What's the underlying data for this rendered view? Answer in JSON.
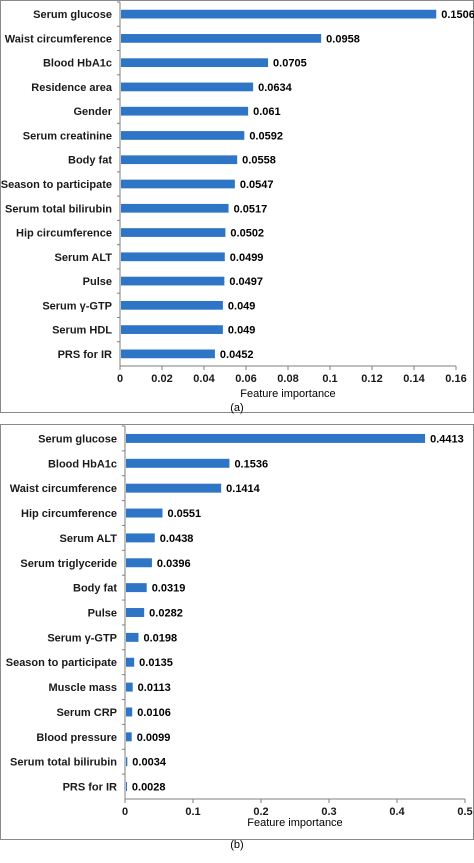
{
  "chart_data": [
    {
      "type": "bar",
      "orientation": "horizontal",
      "panel_label": "(a)",
      "xlabel": "Feature importance",
      "ylabel": "",
      "xlim": [
        0,
        0.16
      ],
      "xticks": [
        "0",
        "0.02",
        "0.04",
        "0.06",
        "0.08",
        "0.1",
        "0.12",
        "0.14",
        "0.16"
      ],
      "categories": [
        "Serum glucose",
        "Waist circumference",
        "Blood HbA1c",
        "Residence area",
        "Gender",
        "Serum creatinine",
        "Body fat",
        "Season to participate",
        "Serum total bilirubin",
        "Hip circumference",
        "Serum ALT",
        "Pulse",
        "Serum γ-GTP",
        "Serum HDL",
        "PRS for IR"
      ],
      "values": [
        0.1506,
        0.0958,
        0.0705,
        0.0634,
        0.061,
        0.0592,
        0.0558,
        0.0547,
        0.0517,
        0.0502,
        0.0499,
        0.0497,
        0.049,
        0.049,
        0.0452
      ],
      "value_labels": [
        "0.1506",
        "0.0958",
        "0.0705",
        "0.0634",
        "0.061",
        "0.0592",
        "0.0558",
        "0.0547",
        "0.0517",
        "0.0502",
        "0.0499",
        "0.0497",
        "0.049",
        "0.049",
        "0.0452"
      ],
      "bar_color": "#2e75c6",
      "grid": false,
      "legend": "none"
    },
    {
      "type": "bar",
      "orientation": "horizontal",
      "panel_label": "(b)",
      "xlabel": "Feature importance",
      "ylabel": "",
      "xlim": [
        0,
        0.5
      ],
      "xticks": [
        "0",
        "0.1",
        "0.2",
        "0.3",
        "0.4",
        "0.5"
      ],
      "categories": [
        "Serum glucose",
        "Blood HbA1c",
        "Waist circumference",
        "Hip circumference",
        "Serum ALT",
        "Serum triglyceride",
        "Body fat",
        "Pulse",
        "Serum γ-GTP",
        "Season to participate",
        "Muscle mass",
        "Serum CRP",
        "Blood pressure",
        "Serum total bilirubin",
        "PRS for IR"
      ],
      "values": [
        0.4413,
        0.1536,
        0.1414,
        0.0551,
        0.0438,
        0.0396,
        0.0319,
        0.0282,
        0.0198,
        0.0135,
        0.0113,
        0.0106,
        0.0099,
        0.0034,
        0.0028
      ],
      "value_labels": [
        "0.4413",
        "0.1536",
        "0.1414",
        "0.0551",
        "0.0438",
        "0.0396",
        "0.0319",
        "0.0282",
        "0.0198",
        "0.0135",
        "0.0113",
        "0.0106",
        "0.0099",
        "0.0034",
        "0.0028"
      ],
      "bar_color": "#2e75c6",
      "grid": false,
      "legend": "none"
    }
  ]
}
